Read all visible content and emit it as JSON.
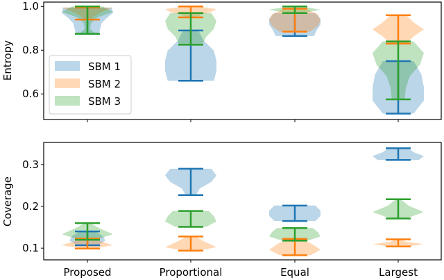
{
  "colors": {
    "SBM 1": "#1f77b4",
    "SBM 2": "#ff7f0e",
    "SBM 3": "#2ca02c"
  },
  "chart_data": [
    {
      "type": "violin",
      "ylabel": "Entropy",
      "ylim": [
        0.483,
        1.02
      ],
      "yticks": [
        "0.6",
        "0.8",
        "1.0"
      ],
      "ytick_values": [
        0.6,
        0.8,
        1.0
      ],
      "categories": [
        "Proposed",
        "Proportional",
        "Equal",
        "Largest"
      ],
      "legend": {
        "placement": "center-left",
        "entries": [
          "SBM 1",
          "SBM 2",
          "SBM 3"
        ]
      },
      "series": [
        {
          "name": "SBM 1",
          "violins": [
            {
              "min": 0.875,
              "max": 0.995,
              "density": [
                0.45,
                0.5,
                0.55,
                0.75,
                1.0,
                0.95
              ]
            },
            {
              "min": 0.66,
              "max": 0.89,
              "density": [
                0.9,
                1.0,
                1.0,
                0.9,
                0.5,
                0.3
              ]
            },
            {
              "min": 0.865,
              "max": 0.97,
              "density": [
                0.75,
                0.85,
                1.0,
                1.0,
                0.8
              ]
            },
            {
              "min": 0.51,
              "max": 0.75,
              "density": [
                0.6,
                1.0,
                1.0,
                0.9,
                0.6
              ]
            }
          ]
        },
        {
          "name": "SBM 2",
          "violins": [
            {
              "min": 0.94,
              "max": 0.995,
              "density": [
                0.1,
                0.3,
                0.6,
                1.0
              ]
            },
            {
              "min": 0.95,
              "max": 1.0,
              "density": [
                0.2,
                0.4,
                0.8,
                1.0,
                0.3
              ]
            },
            {
              "min": 0.885,
              "max": 0.99,
              "density": [
                0.6,
                0.9,
                1.0,
                0.9,
                0.4
              ]
            },
            {
              "min": 0.83,
              "max": 0.96,
              "density": [
                0.3,
                0.6,
                1.0,
                0.6,
                0.3
              ]
            }
          ]
        },
        {
          "name": "SBM 3",
          "violins": [
            {
              "min": 0.875,
              "max": 1.0,
              "density": [
                0.3,
                0.1,
                0.15,
                0.4,
                1.0,
                0.6
              ]
            },
            {
              "min": 0.825,
              "max": 0.97,
              "density": [
                0.45,
                0.6,
                0.9,
                1.0,
                0.8
              ]
            },
            {
              "min": 0.97,
              "max": 1.0,
              "density": [
                0.3,
                1.0,
                0.3
              ]
            },
            {
              "min": 0.575,
              "max": 0.84,
              "density": [
                0.25,
                0.3,
                0.45,
                0.85,
                1.0,
                0.6
              ]
            }
          ]
        }
      ]
    },
    {
      "type": "violin",
      "ylabel": "Coverage",
      "xlabel": "",
      "ylim": [
        0.072,
        0.353
      ],
      "yticks": [
        "0.1",
        "0.2",
        "0.3"
      ],
      "ytick_values": [
        0.1,
        0.2,
        0.3
      ],
      "categories": [
        "Proposed",
        "Proportional",
        "Equal",
        "Largest"
      ],
      "series": [
        {
          "name": "SBM 1",
          "violins": [
            {
              "min": 0.107,
              "max": 0.14,
              "density": [
                0.4,
                0.7,
                0.6,
                0.3
              ]
            },
            {
              "min": 0.227,
              "max": 0.29,
              "density": [
                0.2,
                0.35,
                0.8,
                1.0,
                0.8
              ]
            },
            {
              "min": 0.165,
              "max": 0.202,
              "density": [
                0.8,
                1.0,
                1.0,
                0.8
              ]
            },
            {
              "min": 0.311,
              "max": 0.339,
              "density": [
                0.8,
                1.0,
                0.6,
                0.4
              ]
            }
          ]
        },
        {
          "name": "SBM 2",
          "violins": [
            {
              "min": 0.099,
              "max": 0.123,
              "density": [
                0.2,
                1.0,
                0.6,
                0.2
              ]
            },
            {
              "min": 0.094,
              "max": 0.128,
              "density": [
                0.3,
                1.0,
                0.7,
                0.4,
                0.2
              ]
            },
            {
              "min": 0.083,
              "max": 0.122,
              "density": [
                0.6,
                1.0,
                0.7,
                0.3
              ]
            },
            {
              "min": 0.104,
              "max": 0.121,
              "density": [
                0.4,
                1.0,
                0.3,
                0.1
              ]
            }
          ]
        },
        {
          "name": "SBM 3",
          "violins": [
            {
              "min": 0.12,
              "max": 0.16,
              "density": [
                0.3,
                1.0,
                0.5,
                0.1
              ]
            },
            {
              "min": 0.151,
              "max": 0.189,
              "density": [
                0.6,
                1.0,
                0.9,
                0.7
              ]
            },
            {
              "min": 0.118,
              "max": 0.148,
              "density": [
                0.5,
                1.0,
                0.9,
                0.7
              ]
            },
            {
              "min": 0.171,
              "max": 0.217,
              "density": [
                0.3,
                1.0,
                0.4,
                0.1
              ]
            }
          ]
        }
      ]
    }
  ]
}
